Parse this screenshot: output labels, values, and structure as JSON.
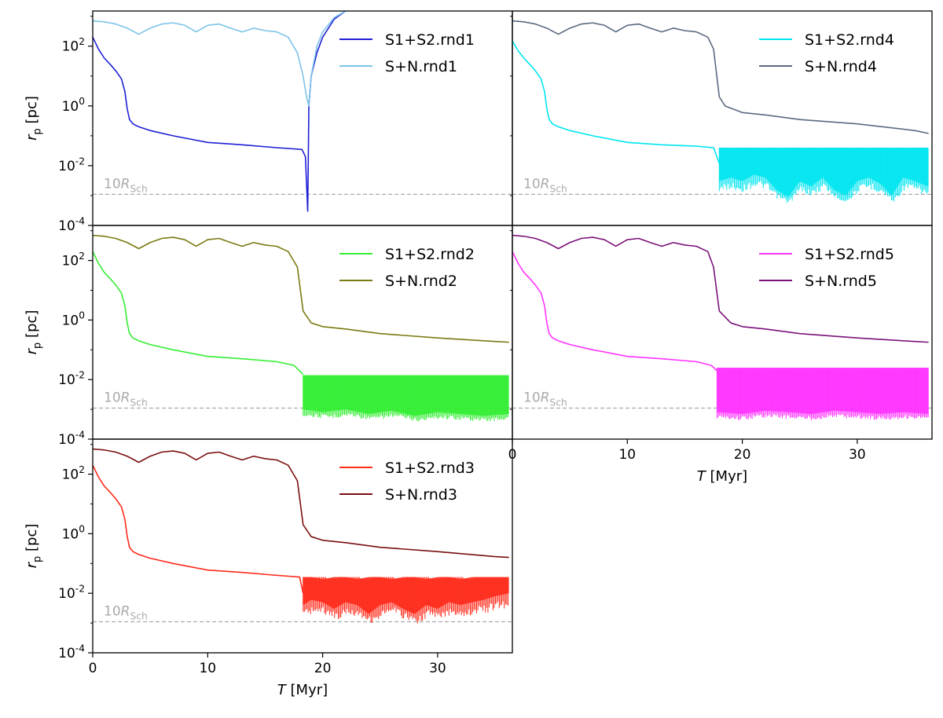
{
  "chart_data": [
    {
      "type": "line",
      "panel": "rnd1",
      "ylabel": "r_p [pc]",
      "xlabel": "",
      "yscale": "log",
      "xlim": [
        0,
        36.5
      ],
      "ylim": [
        0.0001,
        1500
      ],
      "xticks": [],
      "yticks": [
        {
          "v": 0.0001,
          "label": "10^-4"
        },
        {
          "v": 0.01,
          "label": "10^-2"
        },
        {
          "v": 1,
          "label": "10^0"
        },
        {
          "v": 100,
          "label": "10^2"
        }
      ],
      "legend": {
        "loc": "upper right",
        "entries": [
          "S1+S2.rnd1",
          "S+N.rnd1"
        ]
      },
      "annotation": {
        "text": "10R_Sch",
        "value": 0.0011
      },
      "series": [
        {
          "name": "S1+S2.rnd1",
          "color": "#1f1fd6",
          "band": false,
          "x": [
            0,
            0.5,
            1,
            1.5,
            2,
            2.5,
            2.8,
            3.0,
            3.2,
            3.5,
            4,
            5,
            7,
            10,
            13,
            16,
            18.2,
            18.5,
            18.7,
            18.8,
            19.0,
            19.5,
            20,
            21,
            22
          ],
          "y": [
            200,
            80,
            40,
            25,
            15,
            8,
            3,
            0.8,
            0.35,
            0.25,
            0.2,
            0.15,
            0.1,
            0.06,
            0.05,
            0.04,
            0.035,
            0.02,
            0.0003,
            1,
            10,
            60,
            200,
            800,
            1500
          ],
          "yhi": []
        },
        {
          "name": "S+N.rnd1",
          "color": "#7cc3e8",
          "band": false,
          "x": [
            0,
            1,
            2,
            3,
            4,
            5,
            6,
            7,
            8,
            9,
            10,
            11,
            12,
            13,
            14,
            15,
            16,
            17,
            17.8,
            18.3,
            18.6,
            18.8,
            19.0,
            19.5,
            20,
            21,
            22
          ],
          "y": [
            700,
            650,
            550,
            400,
            250,
            400,
            550,
            600,
            500,
            300,
            500,
            550,
            400,
            300,
            400,
            330,
            300,
            200,
            60,
            10,
            2,
            1,
            10,
            100,
            300,
            900,
            1500
          ],
          "yhi": []
        }
      ]
    },
    {
      "type": "line",
      "panel": "rnd4",
      "ylabel": "",
      "xlabel": "",
      "yscale": "log",
      "xlim": [
        0,
        36.5
      ],
      "ylim": [
        0.0001,
        1500
      ],
      "xticks": [],
      "yticks": [],
      "legend": {
        "loc": "upper right",
        "entries": [
          "S1+S2.rnd4",
          "S+N.rnd4"
        ]
      },
      "annotation": {
        "text": "10R_Sch",
        "value": 0.0011
      },
      "series": [
        {
          "name": "S1+S2.rnd4",
          "color": "#00e5f0",
          "band": false,
          "x": [
            0,
            0.5,
            1,
            1.5,
            2,
            2.5,
            2.8,
            3.0,
            3.2,
            3.5,
            4,
            5,
            7,
            10,
            13,
            16,
            17.5,
            18.0
          ],
          "y": [
            150,
            70,
            40,
            25,
            15,
            8,
            3,
            0.8,
            0.35,
            0.25,
            0.2,
            0.15,
            0.1,
            0.06,
            0.05,
            0.045,
            0.04,
            0.012
          ],
          "yhi": []
        },
        {
          "name": "S1+S2.rnd4",
          "color": "#00e5f0",
          "band": true,
          "x": [
            18.0,
            19,
            20,
            21,
            22,
            23,
            24,
            25,
            26,
            27,
            28,
            29,
            30,
            31,
            32,
            33,
            34,
            35,
            36.2
          ],
          "y": [
            0.003,
            0.004,
            0.003,
            0.005,
            0.004,
            0.0015,
            0.0009,
            0.003,
            0.002,
            0.004,
            0.0015,
            0.001,
            0.003,
            0.004,
            0.0025,
            0.001,
            0.004,
            0.003,
            0.002
          ],
          "yhi": [
            0.04,
            0.04,
            0.04,
            0.04,
            0.04,
            0.04,
            0.04,
            0.04,
            0.04,
            0.04,
            0.04,
            0.04,
            0.04,
            0.04,
            0.04,
            0.04,
            0.04,
            0.04,
            0.04
          ]
        },
        {
          "name": "S+N.rnd4",
          "color": "#5a6a80",
          "band": false,
          "x": [
            0,
            1,
            2,
            3,
            4,
            5,
            6,
            7,
            8,
            9,
            10,
            11,
            12,
            13,
            14,
            15,
            16,
            17,
            17.5,
            18.0,
            18.5,
            20,
            22,
            25,
            30,
            35,
            36.2
          ],
          "y": [
            700,
            650,
            550,
            400,
            250,
            400,
            550,
            600,
            500,
            300,
            500,
            550,
            400,
            300,
            400,
            330,
            300,
            200,
            80,
            2,
            1,
            0.6,
            0.5,
            0.35,
            0.25,
            0.15,
            0.12
          ],
          "yhi": []
        }
      ]
    },
    {
      "type": "line",
      "panel": "rnd2",
      "ylabel": "r_p [pc]",
      "xlabel": "",
      "yscale": "log",
      "xlim": [
        0,
        36.5
      ],
      "ylim": [
        0.0001,
        1500
      ],
      "xticks": [],
      "yticks": [
        {
          "v": 0.0001,
          "label": "10^-4"
        },
        {
          "v": 0.01,
          "label": "10^-2"
        },
        {
          "v": 1,
          "label": "10^0"
        },
        {
          "v": 100,
          "label": "10^2"
        }
      ],
      "legend": {
        "loc": "upper right",
        "entries": [
          "S1+S2.rnd2",
          "S+N.rnd2"
        ]
      },
      "annotation": {
        "text": "10R_Sch",
        "value": 0.0011
      },
      "series": [
        {
          "name": "S1+S2.rnd2",
          "color": "#33ee33",
          "band": false,
          "x": [
            0,
            0.5,
            1,
            1.5,
            2,
            2.5,
            2.8,
            3.0,
            3.2,
            3.5,
            4,
            5,
            7,
            10,
            13,
            16,
            17.5,
            18.3
          ],
          "y": [
            200,
            80,
            40,
            25,
            15,
            8,
            3,
            0.8,
            0.35,
            0.25,
            0.2,
            0.15,
            0.1,
            0.06,
            0.05,
            0.04,
            0.03,
            0.015
          ],
          "yhi": []
        },
        {
          "name": "S1+S2.rnd2",
          "color": "#33ee33",
          "band": true,
          "x": [
            18.3,
            20,
            22,
            24,
            26,
            28,
            30,
            32,
            34,
            36.2
          ],
          "y": [
            0.001,
            0.0008,
            0.001,
            0.0007,
            0.0009,
            0.0006,
            0.0008,
            0.0007,
            0.0006,
            0.0007
          ],
          "yhi": [
            0.014,
            0.014,
            0.014,
            0.014,
            0.014,
            0.014,
            0.014,
            0.014,
            0.014,
            0.014
          ]
        },
        {
          "name": "S+N.rnd2",
          "color": "#7a7a12",
          "band": false,
          "x": [
            0,
            1,
            2,
            3,
            4,
            5,
            6,
            7,
            8,
            9,
            10,
            11,
            12,
            13,
            14,
            15,
            16,
            17,
            17.8,
            18.3,
            19,
            20,
            22,
            25,
            30,
            35,
            36.2
          ],
          "y": [
            700,
            650,
            550,
            400,
            250,
            400,
            550,
            600,
            500,
            300,
            500,
            550,
            400,
            300,
            400,
            330,
            300,
            200,
            60,
            2,
            0.8,
            0.6,
            0.5,
            0.35,
            0.25,
            0.19,
            0.18
          ],
          "yhi": []
        }
      ]
    },
    {
      "type": "line",
      "panel": "rnd5",
      "ylabel": "",
      "xlabel": "T [Myr]",
      "yscale": "log",
      "xlim": [
        0,
        36.5
      ],
      "ylim": [
        0.0001,
        1500
      ],
      "xticks": [
        {
          "v": 0,
          "label": "0"
        },
        {
          "v": 10,
          "label": "10"
        },
        {
          "v": 20,
          "label": "20"
        },
        {
          "v": 30,
          "label": "30"
        }
      ],
      "yticks": [],
      "legend": {
        "loc": "upper right",
        "entries": [
          "S1+S2.rnd5",
          "S+N.rnd5"
        ]
      },
      "annotation": {
        "text": "10R_Sch",
        "value": 0.0011
      },
      "series": [
        {
          "name": "S1+S2.rnd5",
          "color": "#ff33ff",
          "band": false,
          "x": [
            0,
            0.5,
            1,
            1.5,
            2,
            2.5,
            2.8,
            3.0,
            3.2,
            3.5,
            4,
            5,
            7,
            10,
            13,
            16,
            17.3,
            17.8
          ],
          "y": [
            200,
            80,
            40,
            25,
            15,
            8,
            3,
            0.8,
            0.35,
            0.25,
            0.2,
            0.15,
            0.1,
            0.06,
            0.05,
            0.04,
            0.03,
            0.02
          ],
          "yhi": []
        },
        {
          "name": "S1+S2.rnd5",
          "color": "#ff33ff",
          "band": true,
          "x": [
            17.8,
            20,
            22,
            24,
            26,
            28,
            30,
            32,
            34,
            36.2
          ],
          "y": [
            0.0008,
            0.0007,
            0.0009,
            0.0008,
            0.0007,
            0.0009,
            0.0008,
            0.0007,
            0.0008,
            0.0007
          ],
          "yhi": [
            0.025,
            0.025,
            0.025,
            0.025,
            0.025,
            0.025,
            0.025,
            0.025,
            0.025,
            0.025
          ]
        },
        {
          "name": "S+N.rnd5",
          "color": "#7a127a",
          "band": false,
          "x": [
            0,
            1,
            2,
            3,
            4,
            5,
            6,
            7,
            8,
            9,
            10,
            11,
            12,
            13,
            14,
            15,
            16,
            17,
            17.5,
            18.0,
            19,
            20,
            22,
            25,
            30,
            35,
            36.2
          ],
          "y": [
            700,
            650,
            550,
            400,
            250,
            400,
            550,
            600,
            500,
            300,
            500,
            550,
            400,
            300,
            400,
            330,
            300,
            200,
            60,
            2,
            0.8,
            0.6,
            0.5,
            0.35,
            0.25,
            0.19,
            0.18
          ],
          "yhi": []
        }
      ]
    },
    {
      "type": "line",
      "panel": "rnd3",
      "ylabel": "r_p [pc]",
      "xlabel": "T [Myr]",
      "yscale": "log",
      "xlim": [
        0,
        36.5
      ],
      "ylim": [
        0.0001,
        1500
      ],
      "xticks": [
        {
          "v": 0,
          "label": "0"
        },
        {
          "v": 10,
          "label": "10"
        },
        {
          "v": 20,
          "label": "20"
        },
        {
          "v": 30,
          "label": "30"
        }
      ],
      "yticks": [
        {
          "v": 0.0001,
          "label": "10^-4"
        },
        {
          "v": 0.01,
          "label": "10^-2"
        },
        {
          "v": 1,
          "label": "10^0"
        },
        {
          "v": 100,
          "label": "10^2"
        }
      ],
      "legend": {
        "loc": "upper right",
        "entries": [
          "S1+S2.rnd3",
          "S+N.rnd3"
        ]
      },
      "annotation": {
        "text": "10R_Sch",
        "value": 0.0011
      },
      "series": [
        {
          "name": "S1+S2.rnd3",
          "color": "#ff2a1a",
          "band": false,
          "x": [
            0,
            0.5,
            1,
            1.5,
            2,
            2.5,
            2.8,
            3.0,
            3.2,
            3.5,
            4,
            5,
            7,
            10,
            13,
            16,
            18.0,
            18.3
          ],
          "y": [
            200,
            80,
            40,
            25,
            15,
            8,
            3,
            0.8,
            0.35,
            0.25,
            0.2,
            0.15,
            0.1,
            0.06,
            0.05,
            0.04,
            0.035,
            0.01
          ],
          "yhi": []
        },
        {
          "name": "S1+S2.rnd3",
          "color": "#ff2a1a",
          "band": true,
          "x": [
            18.3,
            19,
            20,
            21,
            22,
            23,
            24,
            25,
            26,
            27,
            28,
            29,
            30,
            31,
            32,
            33,
            34,
            35,
            36.2
          ],
          "y": [
            0.004,
            0.006,
            0.005,
            0.003,
            0.005,
            0.004,
            0.002,
            0.004,
            0.005,
            0.003,
            0.002,
            0.004,
            0.003,
            0.005,
            0.004,
            0.005,
            0.006,
            0.008,
            0.01
          ],
          "yhi": [
            0.035,
            0.035,
            0.03,
            0.035,
            0.035,
            0.03,
            0.035,
            0.035,
            0.03,
            0.035,
            0.035,
            0.03,
            0.035,
            0.035,
            0.03,
            0.035,
            0.035,
            0.035,
            0.035
          ]
        },
        {
          "name": "S+N.rnd3",
          "color": "#7a0f0f",
          "band": false,
          "x": [
            0,
            1,
            2,
            3,
            4,
            5,
            6,
            7,
            8,
            9,
            10,
            11,
            12,
            13,
            14,
            15,
            16,
            17,
            17.8,
            18.3,
            19,
            20,
            22,
            25,
            30,
            35,
            36.2
          ],
          "y": [
            700,
            650,
            550,
            400,
            250,
            400,
            550,
            600,
            500,
            300,
            500,
            550,
            400,
            300,
            400,
            330,
            300,
            200,
            60,
            2,
            0.8,
            0.6,
            0.5,
            0.35,
            0.25,
            0.17,
            0.16
          ],
          "yhi": []
        }
      ]
    }
  ]
}
